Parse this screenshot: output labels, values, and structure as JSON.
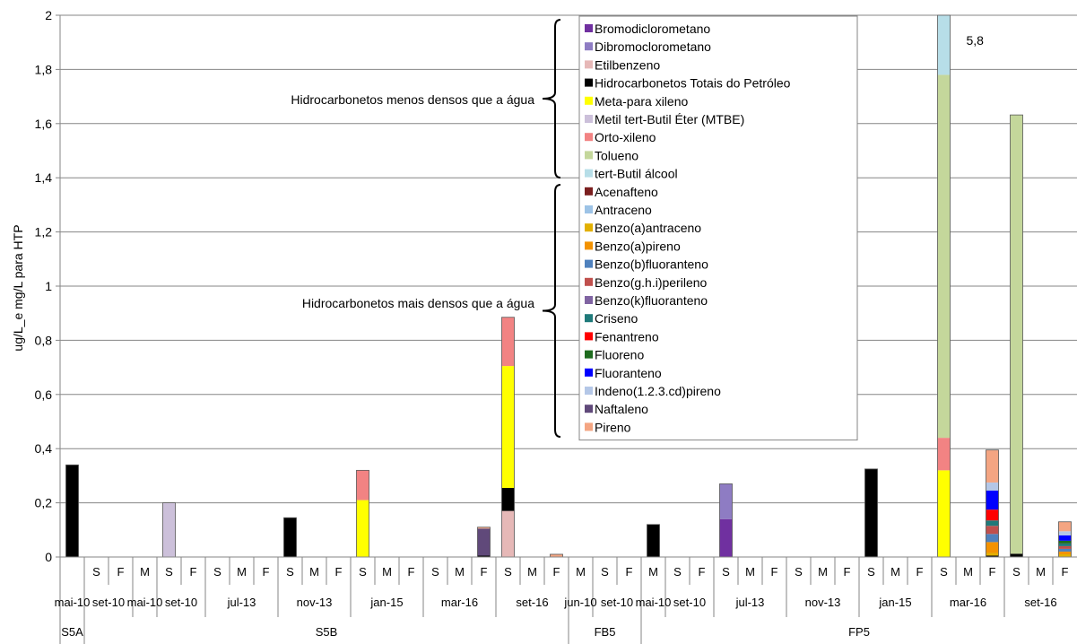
{
  "chart_data": {
    "type": "bar",
    "stacked": true,
    "ylabel": "ug/L_e mg/L para HTP",
    "ylim": [
      0,
      2
    ],
    "yticks": [
      "0",
      "0,2",
      "0,4",
      "0,6",
      "0,8",
      "1",
      "1,2",
      "1,4",
      "1,6",
      "1,8",
      "2"
    ],
    "grid": true,
    "legend_position": "inside-top-right",
    "categories": [
      "",
      "S",
      "F",
      "M",
      "S",
      "F",
      "S",
      "M",
      "F",
      "S",
      "M",
      "F",
      "S",
      "M",
      "F",
      "S",
      "M",
      "F",
      "S",
      "M",
      "F",
      "M",
      "S",
      "F",
      "M",
      "S",
      "F",
      "S",
      "M",
      "F",
      "S",
      "M",
      "F",
      "S",
      "M",
      "F",
      "S",
      "M",
      "F",
      "S",
      "M",
      "F"
    ],
    "date_groups": [
      {
        "label": "mai-10",
        "start": 0,
        "end": 1
      },
      {
        "label": "set-10",
        "start": 1,
        "end": 3
      },
      {
        "label": "mai-10",
        "start": 3,
        "end": 4
      },
      {
        "label": "set-10",
        "start": 4,
        "end": 6
      },
      {
        "label": "jul-13",
        "start": 6,
        "end": 9
      },
      {
        "label": "nov-13",
        "start": 9,
        "end": 12
      },
      {
        "label": "jan-15",
        "start": 12,
        "end": 15
      },
      {
        "label": "mar-16",
        "start": 15,
        "end": 18
      },
      {
        "label": "set-16",
        "start": 18,
        "end": 21
      },
      {
        "label": "jun-10",
        "start": 21,
        "end": 22
      },
      {
        "label": "set-10",
        "start": 22,
        "end": 24
      },
      {
        "label": "mai-10",
        "start": 24,
        "end": 25
      },
      {
        "label": "set-10",
        "start": 25,
        "end": 27
      },
      {
        "label": "jul-13",
        "start": 27,
        "end": 30
      },
      {
        "label": "nov-13",
        "start": 30,
        "end": 33
      },
      {
        "label": "jan-15",
        "start": 33,
        "end": 36
      },
      {
        "label": "mar-16",
        "start": 36,
        "end": 39
      },
      {
        "label": "set-16",
        "start": 39,
        "end": 42
      }
    ],
    "wells": [
      {
        "label": "S5A",
        "start": 0,
        "end": 1
      },
      {
        "label": "S5B",
        "start": 1,
        "end": 21
      },
      {
        "label": "FB5",
        "start": 21,
        "end": 24
      },
      {
        "label": "FP5",
        "start": 24,
        "end": 42
      }
    ],
    "series": [
      {
        "name": "Bromodiclorometano",
        "color": "#7030a0"
      },
      {
        "name": "Dibromoclorometano",
        "color": "#8e7cc3"
      },
      {
        "name": "Etilbenzeno",
        "color": "#e6b8b7"
      },
      {
        "name": "Hidrocarbonetos Totais do Petróleo",
        "color": "#000000"
      },
      {
        "name": "Meta-para xileno",
        "color": "#ffff00"
      },
      {
        "name": "Metil tert-Butil Éter (MTBE)",
        "color": "#ccc0da"
      },
      {
        "name": "Orto-xileno",
        "color": "#f28383"
      },
      {
        "name": "Tolueno",
        "color": "#c4d79b"
      },
      {
        "name": "tert-Butil álcool",
        "color": "#b7dee8"
      },
      {
        "name": "Acenafteno",
        "color": "#7b1f1f"
      },
      {
        "name": "Antraceno",
        "color": "#9dc3e6"
      },
      {
        "name": "Benzo(a)antraceno",
        "color": "#e2b000"
      },
      {
        "name": "Benzo(a)pireno",
        "color": "#f39200"
      },
      {
        "name": "Benzo(b)fluoranteno",
        "color": "#4f81bd"
      },
      {
        "name": "Benzo(g.h.i)perileno",
        "color": "#c0504d"
      },
      {
        "name": "Benzo(k)fluoranteno",
        "color": "#8064a2"
      },
      {
        "name": "Criseno",
        "color": "#1f7a7a"
      },
      {
        "name": "Fenantreno",
        "color": "#ff0000"
      },
      {
        "name": "Fluoreno",
        "color": "#1e6b1e"
      },
      {
        "name": "Fluoranteno",
        "color": "#0000ff"
      },
      {
        "name": "Indeno(1.2.3.cd)pireno",
        "color": "#b4c7e7"
      },
      {
        "name": "Naftaleno",
        "color": "#60497a"
      },
      {
        "name": "Pireno",
        "color": "#f4a582"
      }
    ],
    "bars": [
      {
        "cat": 0,
        "stack": [
          [
            "Hidrocarbonetos Totais do Petróleo",
            0.34
          ]
        ]
      },
      {
        "cat": 4,
        "stack": [
          [
            "Metil tert-Butil Éter (MTBE)",
            0.2
          ]
        ]
      },
      {
        "cat": 9,
        "stack": [
          [
            "Hidrocarbonetos Totais do Petróleo",
            0.145
          ]
        ]
      },
      {
        "cat": 12,
        "stack": [
          [
            "Meta-para xileno",
            0.21
          ],
          [
            "Orto-xileno",
            0.11
          ]
        ]
      },
      {
        "cat": 17,
        "stack": [
          [
            "Hidrocarbonetos Totais do Petróleo",
            0.005
          ],
          [
            "Naftaleno",
            0.1
          ],
          [
            "Pireno",
            0.005
          ]
        ]
      },
      {
        "cat": 18,
        "stack": [
          [
            "Etilbenzeno",
            0.17
          ],
          [
            "Hidrocarbonetos Totais do Petróleo",
            0.085
          ],
          [
            "Meta-para xileno",
            0.45
          ],
          [
            "Orto-xileno",
            0.18
          ]
        ]
      },
      {
        "cat": 20,
        "stack": [
          [
            "Pireno",
            0.01
          ]
        ]
      },
      {
        "cat": 24,
        "stack": [
          [
            "Hidrocarbonetos Totais do Petróleo",
            0.12
          ]
        ]
      },
      {
        "cat": 27,
        "stack": [
          [
            "Bromodiclorometano",
            0.14
          ],
          [
            "Dibromoclorometano",
            0.13
          ]
        ]
      },
      {
        "cat": 33,
        "stack": [
          [
            "Hidrocarbonetos Totais do Petróleo",
            0.325
          ]
        ]
      },
      {
        "cat": 36,
        "stack": [
          [
            "Meta-para xileno",
            0.32
          ],
          [
            "Orto-xileno",
            0.12
          ],
          [
            "Tolueno",
            1.34
          ],
          [
            "tert-Butil álcool",
            4.02
          ]
        ]
      },
      {
        "cat": 38,
        "stack": [
          [
            "Hidrocarbonetos Totais do Petróleo",
            0.005
          ],
          [
            "Benzo(a)antraceno",
            0.01
          ],
          [
            "Benzo(a)pireno",
            0.04
          ],
          [
            "Benzo(b)fluoranteno",
            0.03
          ],
          [
            "Benzo(g.h.i)perileno",
            0.03
          ],
          [
            "Criseno",
            0.02
          ],
          [
            "Fenantreno",
            0.04
          ],
          [
            "Fluoranteno",
            0.07
          ],
          [
            "Indeno(1.2.3.cd)pireno",
            0.03
          ],
          [
            "Pireno",
            0.12
          ]
        ]
      },
      {
        "cat": 39,
        "stack": [
          [
            "Hidrocarbonetos Totais do Petróleo",
            0.012
          ],
          [
            "Tolueno",
            1.62
          ]
        ]
      },
      {
        "cat": 41,
        "stack": [
          [
            "Benzo(a)antraceno",
            0.01
          ],
          [
            "Benzo(a)pireno",
            0.01
          ],
          [
            "Benzo(b)fluoranteno",
            0.01
          ],
          [
            "Benzo(g.h.i)perileno",
            0.01
          ],
          [
            "Criseno",
            0.01
          ],
          [
            "Fluoreno",
            0.01
          ],
          [
            "Fluoranteno",
            0.02
          ],
          [
            "Indeno(1.2.3.cd)pireno",
            0.015
          ],
          [
            "Pireno",
            0.035
          ]
        ]
      }
    ],
    "annotations": [
      {
        "text": "5,8",
        "cat": 36
      },
      {
        "text": "Hidrocarbonetos menos densos que a água",
        "group": "menos"
      },
      {
        "text": "Hidrocarbonetos mais densos que a água",
        "group": "mais"
      }
    ]
  }
}
